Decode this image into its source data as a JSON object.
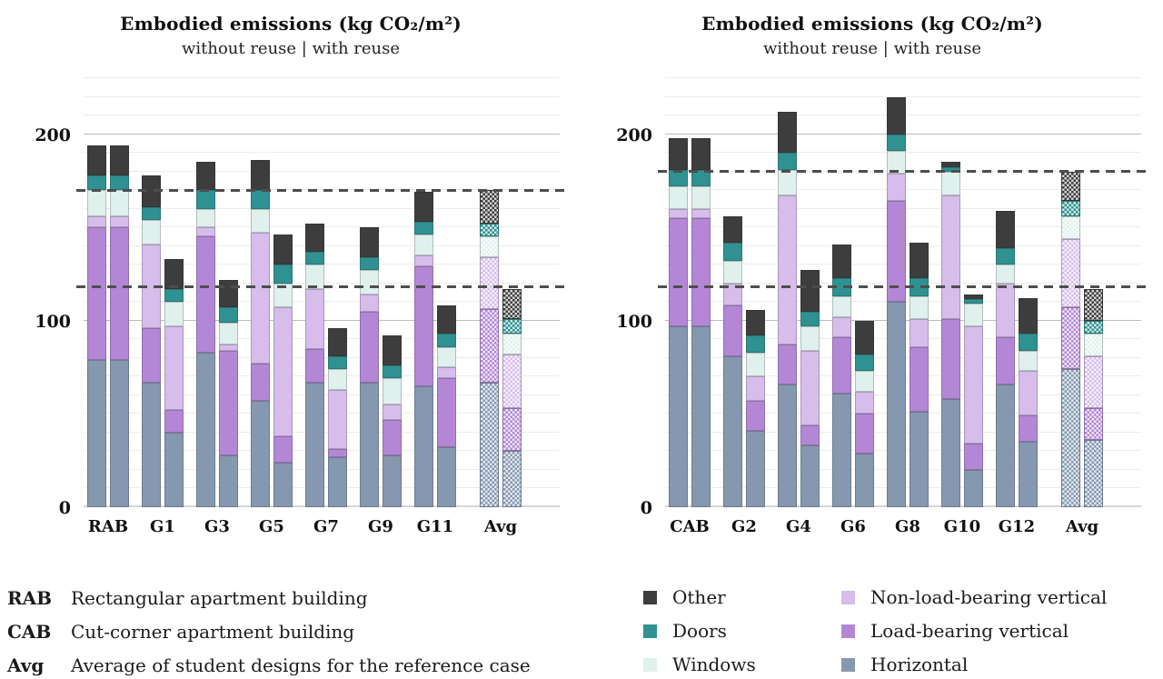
{
  "chart_data": [
    {
      "type": "bar",
      "stacked": true,
      "title": "Embodied emissions (kg CO₂/m²)",
      "subtitle": "without reuse  |  with reuse",
      "bars_per_category": [
        "without reuse",
        "with reuse"
      ],
      "categories": [
        "RAB",
        "G1",
        "G3",
        "G5",
        "G7",
        "G9",
        "G11",
        "Avg"
      ],
      "stack_order": [
        "Horizontal",
        "Load-bearing vertical",
        "Non-load-bearing vertical",
        "Windows",
        "Doors",
        "Other"
      ],
      "ylim": [
        0,
        230
      ],
      "yticks": [
        0,
        100,
        200
      ],
      "grid_step": 10,
      "grid": true,
      "legend_position": "bottom-right",
      "reference_lines": [
        170,
        118
      ],
      "groups": [
        {
          "category": "RAB",
          "hatched": false,
          "without": [
            79,
            71,
            6,
            14,
            8,
            16
          ],
          "with": [
            79,
            71,
            6,
            14,
            8,
            16
          ]
        },
        {
          "category": "G1",
          "hatched": false,
          "without": [
            67,
            29,
            45,
            13,
            7,
            17
          ],
          "with": [
            40,
            12,
            45,
            13,
            7,
            16
          ]
        },
        {
          "category": "G3",
          "hatched": false,
          "without": [
            83,
            62,
            5,
            10,
            10,
            15
          ],
          "with": [
            28,
            56,
            3,
            12,
            8,
            15
          ]
        },
        {
          "category": "G5",
          "hatched": false,
          "without": [
            57,
            20,
            70,
            13,
            10,
            16
          ],
          "with": [
            24,
            14,
            69,
            13,
            10,
            16
          ]
        },
        {
          "category": "G7",
          "hatched": false,
          "without": [
            67,
            18,
            32,
            13,
            7,
            15
          ],
          "with": [
            27,
            4,
            32,
            11,
            7,
            15
          ]
        },
        {
          "category": "G9",
          "hatched": false,
          "without": [
            67,
            38,
            9,
            13,
            7,
            16
          ],
          "with": [
            28,
            19,
            8,
            14,
            7,
            16
          ]
        },
        {
          "category": "G11",
          "hatched": false,
          "without": [
            65,
            64,
            6,
            11,
            7,
            16
          ],
          "with": [
            32,
            37,
            6,
            11,
            7,
            15
          ]
        },
        {
          "category": "Avg",
          "hatched": true,
          "without": [
            67,
            39,
            28,
            11,
            7,
            18
          ],
          "with": [
            30,
            23,
            29,
            11,
            8,
            16
          ]
        }
      ]
    },
    {
      "type": "bar",
      "stacked": true,
      "title": "Embodied emissions (kg CO₂/m²)",
      "subtitle": "without reuse  |  with reuse",
      "bars_per_category": [
        "without reuse",
        "with reuse"
      ],
      "categories": [
        "CAB",
        "G2",
        "G4",
        "G6",
        "G8",
        "G10",
        "G12",
        "Avg"
      ],
      "stack_order": [
        "Horizontal",
        "Load-bearing vertical",
        "Non-load-bearing vertical",
        "Windows",
        "Doors",
        "Other"
      ],
      "ylim": [
        0,
        230
      ],
      "yticks": [
        0,
        100,
        200
      ],
      "grid_step": 10,
      "grid": true,
      "legend_position": "bottom-right",
      "reference_lines": [
        180,
        118
      ],
      "groups": [
        {
          "category": "CAB",
          "hatched": false,
          "without": [
            97,
            58,
            5,
            12,
            9,
            17
          ],
          "with": [
            97,
            58,
            5,
            12,
            9,
            17
          ]
        },
        {
          "category": "G2",
          "hatched": false,
          "without": [
            81,
            27,
            12,
            12,
            10,
            14
          ],
          "with": [
            41,
            16,
            13,
            13,
            9,
            14
          ]
        },
        {
          "category": "G4",
          "hatched": false,
          "without": [
            66,
            21,
            80,
            14,
            9,
            22
          ],
          "with": [
            33,
            11,
            40,
            13,
            8,
            22
          ]
        },
        {
          "category": "G6",
          "hatched": false,
          "without": [
            61,
            30,
            11,
            11,
            10,
            18
          ],
          "with": [
            29,
            21,
            12,
            11,
            9,
            18
          ]
        },
        {
          "category": "G8",
          "hatched": false,
          "without": [
            110,
            54,
            15,
            12,
            9,
            20
          ],
          "with": [
            51,
            35,
            15,
            12,
            10,
            19
          ]
        },
        {
          "category": "G10",
          "hatched": false,
          "without": [
            58,
            43,
            66,
            13,
            2.5,
            2.5
          ],
          "with": [
            20,
            14,
            63,
            12,
            2.5,
            2.5
          ]
        },
        {
          "category": "G12",
          "hatched": false,
          "without": [
            66,
            25,
            29,
            10,
            9,
            20
          ],
          "with": [
            35,
            14,
            24,
            11,
            9,
            19
          ]
        },
        {
          "category": "Avg",
          "hatched": true,
          "without": [
            74,
            33,
            37,
            12,
            8,
            16
          ],
          "with": [
            36,
            17,
            28,
            12,
            7,
            17
          ]
        }
      ]
    }
  ],
  "legend": {
    "items": [
      {
        "label": "Other",
        "color": "#3d3d3d"
      },
      {
        "label": "Doors",
        "color": "#2f9191"
      },
      {
        "label": "Windows",
        "color": "#dff0ed"
      },
      {
        "label": "Non-load-bearing vertical",
        "color": "#d6bdeb"
      },
      {
        "label": "Load-bearing vertical",
        "color": "#b387d6"
      },
      {
        "label": "Horizontal",
        "color": "#8598b0"
      }
    ]
  },
  "footnotes": [
    {
      "term": "RAB",
      "description": "Rectangular apartment building"
    },
    {
      "term": "CAB",
      "description": "Cut-corner apartment building"
    },
    {
      "term": "Avg",
      "description": "Average of student designs for the reference case"
    }
  ]
}
